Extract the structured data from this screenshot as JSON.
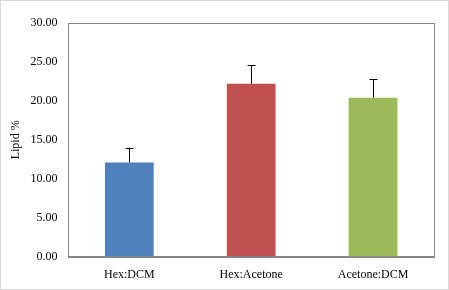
{
  "chart_data": {
    "type": "bar",
    "categories": [
      "Hex:DCM",
      "Hex:Acetone",
      "Acetone:DCM"
    ],
    "values": [
      12.1,
      22.2,
      20.4
    ],
    "errors": [
      1.9,
      2.4,
      2.4
    ],
    "colors": [
      "#4f81bd",
      "#c0504d",
      "#9bbb59"
    ],
    "y_label": "Lipid %",
    "ylim": [
      0,
      30
    ],
    "yticks": [
      {
        "value": 0,
        "label": "0.00"
      },
      {
        "value": 5,
        "label": "5.00"
      },
      {
        "value": 10,
        "label": "10.00"
      },
      {
        "value": 15,
        "label": "15.00"
      },
      {
        "value": 20,
        "label": "20.00"
      },
      {
        "value": 25,
        "label": "25.00"
      },
      {
        "value": 30,
        "label": "30.00"
      }
    ],
    "grid": false
  }
}
